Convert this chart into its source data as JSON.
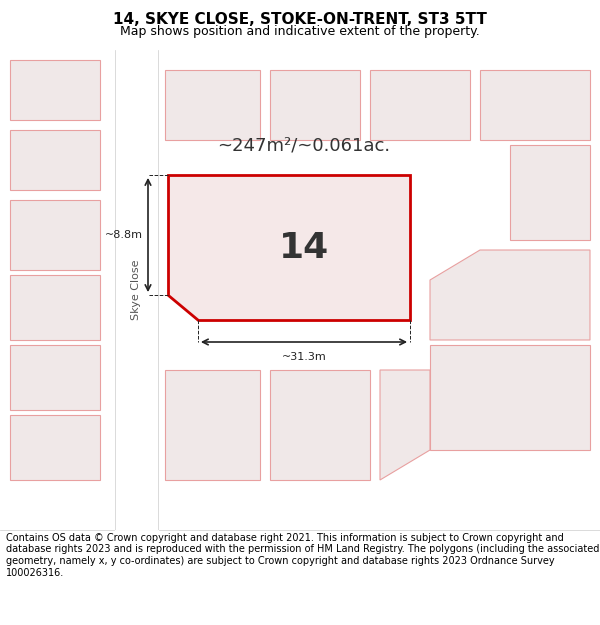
{
  "title_line1": "14, SKYE CLOSE, STOKE-ON-TRENT, ST3 5TT",
  "title_line2": "Map shows position and indicative extent of the property.",
  "footer_text": "Contains OS data © Crown copyright and database right 2021. This information is subject to Crown copyright and database rights 2023 and is reproduced with the permission of HM Land Registry. The polygons (including the associated geometry, namely x, y co-ordinates) are subject to Crown copyright and database rights 2023 Ordnance Survey 100026316.",
  "area_text": "~247m²/~0.061ac.",
  "property_number": "14",
  "dim_width": "~31.3m",
  "dim_height": "~8.8m",
  "road_label": "Skye Close",
  "bg_color": "#f5f0f0",
  "map_bg": "#f5f0f0",
  "plot_fill": "#f5e8e8",
  "plot_edge": "#cc0000",
  "other_plots_edge": "#e8a0a0",
  "other_plots_fill": "#f0e8e8",
  "road_color": "#ffffff",
  "title_bg": "#ffffff",
  "footer_bg": "#ffffff"
}
